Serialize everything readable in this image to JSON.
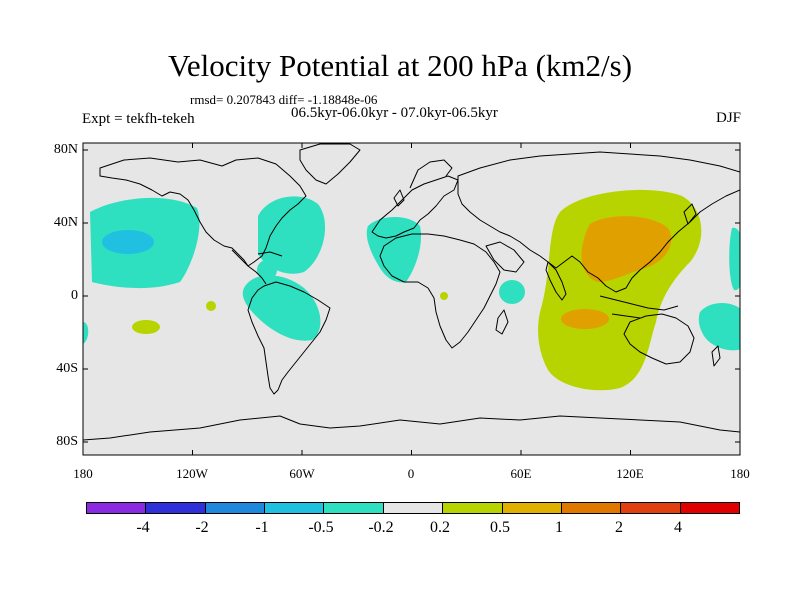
{
  "header": {
    "title": "Velocity Potential at 200 hPa (km2/s)",
    "stats": "rmsd= 0.207843 diff= -1.18848e-06",
    "experiment": "Expt = tekfh-tekeh",
    "period": "06.5kyr-06.0kyr - 07.0kyr-06.5kyr",
    "season": "DJF"
  },
  "axes": {
    "lat_labels": [
      "80N",
      "40N",
      "0",
      "40S",
      "80S"
    ],
    "lon_labels": [
      "180",
      "120W",
      "60W",
      "0",
      "60E",
      "120E",
      "180"
    ]
  },
  "colorbar": {
    "colors": [
      "#8a2be2",
      "#3030d8",
      "#1e88dc",
      "#20c0e0",
      "#2ee0c0",
      "#e6e6e6",
      "#b8d400",
      "#e0b000",
      "#e07800",
      "#e04010",
      "#e00000"
    ],
    "labels": [
      "-4",
      "-2",
      "-1",
      "-0.5",
      "-0.2",
      "0.2",
      "0.5",
      "1",
      "2",
      "4"
    ]
  },
  "legend": {
    "colors": {
      "neutral": "#e6e6e6",
      "cyan": "#2ee0c0",
      "blue": "#20c0e0",
      "yellow_green": "#b8d400",
      "orange": "#e0a000",
      "coast": "#000000"
    }
  }
}
